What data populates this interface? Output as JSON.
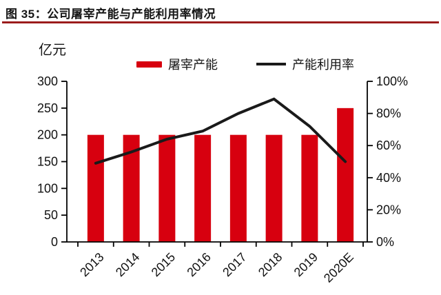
{
  "figure": {
    "title": "图 35：公司屠宰产能与产能利用率情况",
    "unit_label": "亿元"
  },
  "colors": {
    "bar_red": "#d7000f",
    "line_black": "#1a1a1a",
    "title_rule_red": "#9b1c1c",
    "axis_black": "#000000",
    "background": "#ffffff"
  },
  "chart_data": {
    "type": "bar+line combo",
    "title": "公司屠宰产能与产能利用率情况",
    "categories": [
      "2013",
      "2014",
      "2015",
      "2016",
      "2017",
      "2018",
      "2019",
      "2020E"
    ],
    "series": [
      {
        "name": "屠宰产能",
        "type": "bar",
        "axis": "left",
        "unit": "亿元",
        "color": "#d7000f",
        "values": [
          200,
          200,
          200,
          200,
          200,
          200,
          200,
          250
        ]
      },
      {
        "name": "产能利用率",
        "type": "line",
        "axis": "right",
        "unit": "%",
        "color": "#1a1a1a",
        "values": [
          49,
          56,
          64,
          69,
          80,
          89,
          72,
          50
        ]
      }
    ],
    "left_axis": {
      "label": "亿元",
      "min": 0,
      "max": 300,
      "tick_step": 50,
      "ticks": [
        0,
        50,
        100,
        150,
        200,
        250,
        300
      ]
    },
    "right_axis": {
      "min": 0,
      "max": 100,
      "tick_step": 20,
      "tick_labels": [
        "0%",
        "20%",
        "40%",
        "60%",
        "80%",
        "100%"
      ]
    },
    "grid": false,
    "legend_position": "top-center"
  }
}
